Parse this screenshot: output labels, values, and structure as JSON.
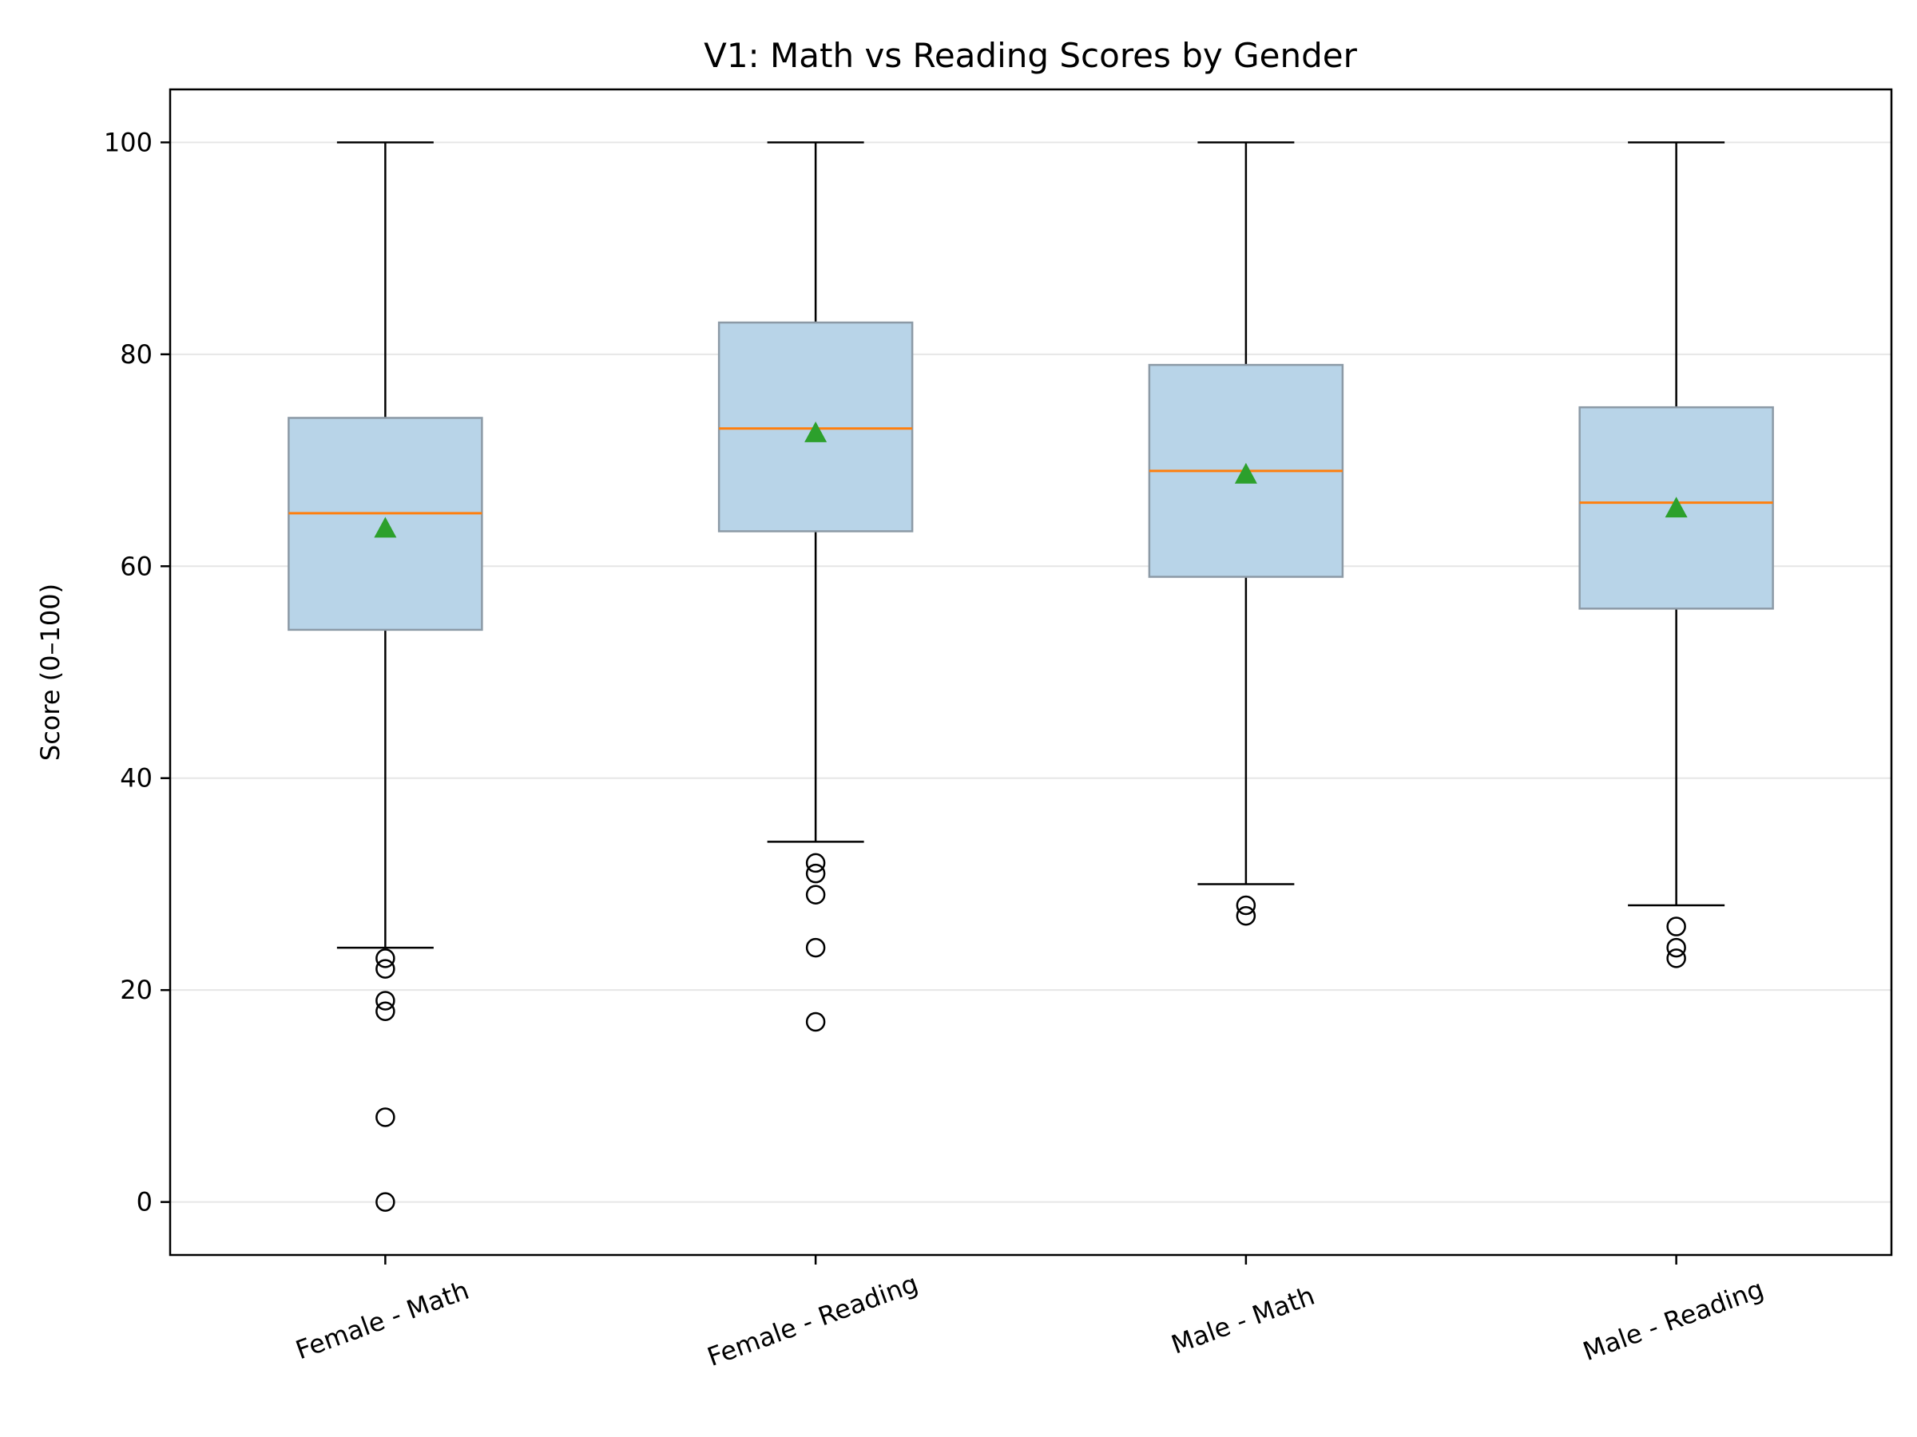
{
  "chart_data": {
    "type": "box",
    "title": "V1: Math vs Reading Scores by Gender",
    "xlabel": "",
    "ylabel": "Score (0–100)",
    "ylim": [
      -5,
      105
    ],
    "yticks": [
      0,
      20,
      40,
      60,
      80,
      100
    ],
    "categories": [
      "Female - Math",
      "Female - Reading",
      "Male - Math",
      "Male - Reading"
    ],
    "grid": "horizontal",
    "boxes": [
      {
        "q1": 54,
        "median": 65,
        "q3": 74,
        "whisker_low": 24,
        "whisker_high": 100,
        "mean": 63.6,
        "outliers": [
          23,
          22,
          19,
          18,
          8,
          0
        ]
      },
      {
        "q1": 63.3,
        "median": 73,
        "q3": 83,
        "whisker_low": 34,
        "whisker_high": 100,
        "mean": 72.6,
        "outliers": [
          32,
          31,
          29,
          24,
          17
        ]
      },
      {
        "q1": 59,
        "median": 69,
        "q3": 79,
        "whisker_low": 30,
        "whisker_high": 100,
        "mean": 68.7,
        "outliers": [
          28,
          27
        ]
      },
      {
        "q1": 56,
        "median": 66,
        "q3": 75,
        "whisker_low": 28,
        "whisker_high": 100,
        "mean": 65.5,
        "outliers": [
          26,
          24,
          23
        ]
      }
    ],
    "colors": {
      "box_fill": "#b8d4e8",
      "box_edge": "#8c9aa6",
      "median": "#ff7f0e",
      "mean_marker": "#2ca02c",
      "whisker": "#000000",
      "grid": "#e6e6e6"
    }
  }
}
